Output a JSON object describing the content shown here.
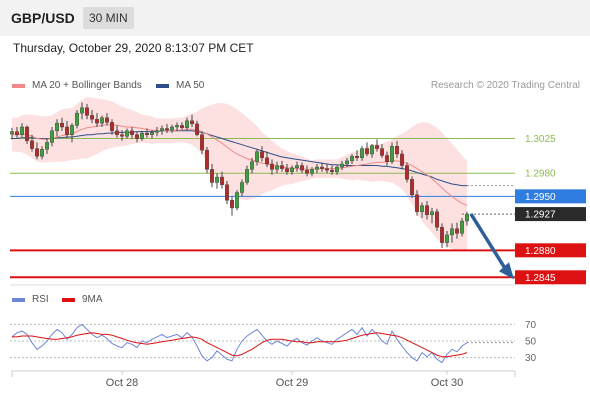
{
  "header": {
    "pair": "GBP/USD",
    "timeframe": "30 MIN"
  },
  "datetime": "Thursday, October 29, 2020 8:13:07 PM CET",
  "legend": {
    "ma20": {
      "label": "MA 20 + Bollinger Bands",
      "color": "#f08a8a"
    },
    "ma50": {
      "label": "MA 50",
      "color": "#2c4f8a"
    },
    "credit": "Research © 2020 Trading Central"
  },
  "rsi_legend": {
    "rsi": {
      "label": "RSI",
      "color": "#6f86d6"
    },
    "ma9": {
      "label": "9MA",
      "color": "#dd1111"
    }
  },
  "chart_data": {
    "type": "candlestick",
    "ylim": [
      1.2835,
      1.3075
    ],
    "levels": [
      {
        "value": 1.3025,
        "label": "1.3025",
        "kind": "resistance-minor",
        "color": "#8dbb55"
      },
      {
        "value": 1.298,
        "label": "1.2980",
        "kind": "resistance-minor",
        "color": "#8dbb55"
      },
      {
        "value": 1.295,
        "label": "1.2950",
        "kind": "pivot",
        "color": "#2f7de0"
      },
      {
        "value": 1.2927,
        "label": "1.2927",
        "kind": "last-price",
        "color": "#2a2a2a"
      },
      {
        "value": 1.288,
        "label": "1.2880",
        "kind": "support",
        "color": "#dd1111"
      },
      {
        "value": 1.2845,
        "label": "1.2845",
        "kind": "support",
        "color": "#dd1111"
      }
    ],
    "x_ticks": [
      {
        "label": "Oct 28",
        "index": 22
      },
      {
        "label": "Oct 29",
        "index": 56
      },
      {
        "label": "Oct 30",
        "index": 87
      }
    ],
    "ohlc": [
      [
        1.3031,
        1.3039,
        1.3024,
        1.3034
      ],
      [
        1.3034,
        1.304,
        1.3026,
        1.303
      ],
      [
        1.303,
        1.3045,
        1.3027,
        1.304
      ],
      [
        1.304,
        1.3042,
        1.3018,
        1.3022
      ],
      [
        1.3022,
        1.303,
        1.3008,
        1.3012
      ],
      [
        1.3012,
        1.302,
        1.2998,
        1.3002
      ],
      [
        1.3002,
        1.3015,
        1.2998,
        1.3011
      ],
      [
        1.3011,
        1.3025,
        1.3005,
        1.302
      ],
      [
        1.302,
        1.304,
        1.3015,
        1.3035
      ],
      [
        1.3035,
        1.305,
        1.3028,
        1.3045
      ],
      [
        1.3045,
        1.3052,
        1.3035,
        1.304
      ],
      [
        1.304,
        1.3048,
        1.3025,
        1.303
      ],
      [
        1.303,
        1.3045,
        1.302,
        1.3042
      ],
      [
        1.3042,
        1.3062,
        1.3038,
        1.3058
      ],
      [
        1.3058,
        1.3072,
        1.305,
        1.3065
      ],
      [
        1.3065,
        1.307,
        1.305,
        1.3055
      ],
      [
        1.3055,
        1.3062,
        1.3045,
        1.305
      ],
      [
        1.305,
        1.3058,
        1.304,
        1.3045
      ],
      [
        1.3045,
        1.3055,
        1.304,
        1.3052
      ],
      [
        1.3052,
        1.3058,
        1.3042,
        1.3046
      ],
      [
        1.3046,
        1.305,
        1.303,
        1.3035
      ],
      [
        1.3035,
        1.3042,
        1.3026,
        1.303
      ],
      [
        1.303,
        1.3036,
        1.3022,
        1.3028
      ],
      [
        1.3028,
        1.3038,
        1.3025,
        1.3035
      ],
      [
        1.3035,
        1.304,
        1.3025,
        1.303
      ],
      [
        1.303,
        1.3034,
        1.302,
        1.3025
      ],
      [
        1.3025,
        1.3035,
        1.3022,
        1.3032
      ],
      [
        1.3032,
        1.3038,
        1.3026,
        1.303
      ],
      [
        1.303,
        1.3036,
        1.3025,
        1.3033
      ],
      [
        1.3033,
        1.304,
        1.3028,
        1.3035
      ],
      [
        1.3035,
        1.3042,
        1.303,
        1.3038
      ],
      [
        1.3038,
        1.3044,
        1.3032,
        1.3036
      ],
      [
        1.3036,
        1.3043,
        1.3032,
        1.304
      ],
      [
        1.304,
        1.3046,
        1.3035,
        1.3042
      ],
      [
        1.3042,
        1.3046,
        1.3036,
        1.3039
      ],
      [
        1.3039,
        1.3052,
        1.3036,
        1.3048
      ],
      [
        1.3048,
        1.3056,
        1.304,
        1.3044
      ],
      [
        1.3044,
        1.3048,
        1.3028,
        1.303
      ],
      [
        1.303,
        1.3034,
        1.3005,
        1.301
      ],
      [
        1.301,
        1.3014,
        1.298,
        1.2985
      ],
      [
        1.2985,
        1.2992,
        1.2962,
        1.2968
      ],
      [
        1.2968,
        1.298,
        1.296,
        1.2975
      ],
      [
        1.2975,
        1.2982,
        1.296,
        1.2965
      ],
      [
        1.2965,
        1.297,
        1.294,
        1.2945
      ],
      [
        1.2945,
        1.295,
        1.2925,
        1.2935
      ],
      [
        1.2935,
        1.2958,
        1.2932,
        1.2955
      ],
      [
        1.2955,
        1.2972,
        1.295,
        1.2968
      ],
      [
        1.2968,
        1.299,
        1.2965,
        1.2985
      ],
      [
        1.2985,
        1.3,
        1.298,
        1.2995
      ],
      [
        1.2995,
        1.3012,
        1.299,
        1.3008
      ],
      [
        1.3008,
        1.3015,
        1.2995,
        1.3
      ],
      [
        1.3,
        1.3008,
        1.2988,
        1.2992
      ],
      [
        1.2992,
        1.2998,
        1.2978,
        1.2985
      ],
      [
        1.2985,
        1.2995,
        1.298,
        1.299
      ],
      [
        1.299,
        1.2996,
        1.2982,
        1.2986
      ],
      [
        1.2986,
        1.2992,
        1.2978,
        1.2982
      ],
      [
        1.2982,
        1.299,
        1.2978,
        1.2987
      ],
      [
        1.2987,
        1.2995,
        1.2982,
        1.299
      ],
      [
        1.299,
        1.2994,
        1.298,
        1.2984
      ],
      [
        1.2984,
        1.299,
        1.2976,
        1.298
      ],
      [
        1.298,
        1.2988,
        1.2976,
        1.2985
      ],
      [
        1.2985,
        1.2992,
        1.298,
        1.2988
      ],
      [
        1.2988,
        1.2994,
        1.2982,
        1.2986
      ],
      [
        1.2986,
        1.2992,
        1.298,
        1.2984
      ],
      [
        1.2984,
        1.299,
        1.2978,
        1.2982
      ],
      [
        1.2982,
        1.299,
        1.2978,
        1.2988
      ],
      [
        1.2988,
        1.2996,
        1.2984,
        1.2992
      ],
      [
        1.2992,
        1.3,
        1.2988,
        1.2996
      ],
      [
        1.2996,
        1.3005,
        1.2992,
        1.3002
      ],
      [
        1.3002,
        1.301,
        1.2996,
        1.3
      ],
      [
        1.3,
        1.3015,
        1.2996,
        1.3012
      ],
      [
        1.3012,
        1.302,
        1.3002,
        1.3005
      ],
      [
        1.3005,
        1.3018,
        1.3,
        1.3016
      ],
      [
        1.3016,
        1.3024,
        1.3008,
        1.3012
      ],
      [
        1.3012,
        1.3018,
        1.3,
        1.3003
      ],
      [
        1.3003,
        1.3008,
        1.299,
        1.2995
      ],
      [
        1.2995,
        1.302,
        1.2992,
        1.3015
      ],
      [
        1.3015,
        1.3022,
        1.3,
        1.3005
      ],
      [
        1.3005,
        1.301,
        1.2985,
        1.299
      ],
      [
        1.299,
        1.2994,
        1.2968,
        1.2972
      ],
      [
        1.2972,
        1.2976,
        1.2948,
        1.2952
      ],
      [
        1.2952,
        1.2958,
        1.2925,
        1.293
      ],
      [
        1.293,
        1.2942,
        1.2922,
        1.2938
      ],
      [
        1.2938,
        1.2944,
        1.292,
        1.2926
      ],
      [
        1.2926,
        1.2935,
        1.2915,
        1.293
      ],
      [
        1.293,
        1.2934,
        1.2905,
        1.291
      ],
      [
        1.291,
        1.2915,
        1.2883,
        1.289
      ],
      [
        1.289,
        1.2905,
        1.2884,
        1.29
      ],
      [
        1.29,
        1.2915,
        1.289,
        1.2908
      ],
      [
        1.2908,
        1.2916,
        1.2895,
        1.2902
      ],
      [
        1.2902,
        1.2922,
        1.2898,
        1.2918
      ],
      [
        1.2918,
        1.293,
        1.2912,
        1.2927
      ]
    ],
    "ma20": [
      1.303,
      1.303,
      1.3031,
      1.303,
      1.3028,
      1.3025,
      1.3024,
      1.3024,
      1.3025,
      1.3027,
      1.3029,
      1.303,
      1.3031,
      1.3034,
      1.3037,
      1.3039,
      1.304,
      1.3041,
      1.3042,
      1.3043,
      1.3043,
      1.3042,
      1.3041,
      1.304,
      1.304,
      1.3039,
      1.3038,
      1.3037,
      1.3036,
      1.3035,
      1.3035,
      1.3035,
      1.3035,
      1.3036,
      1.3036,
      1.3037,
      1.3037,
      1.3036,
      1.3034,
      1.3031,
      1.3027,
      1.3023,
      1.3019,
      1.3014,
      1.3009,
      1.3005,
      1.3002,
      1.2999,
      1.2997,
      1.2995,
      1.2993,
      1.2992,
      1.299,
      1.2989,
      1.2988,
      1.2987,
      1.2986,
      1.2986,
      1.2986,
      1.2985,
      1.2985,
      1.2986,
      1.2986,
      1.2986,
      1.2986,
      1.2986,
      1.2987,
      1.2988,
      1.2989,
      1.299,
      1.2991,
      1.2992,
      1.2993,
      1.2994,
      1.2994,
      1.2995,
      1.2996,
      1.2996,
      1.2995,
      1.2993,
      1.299,
      1.2986,
      1.2982,
      1.2978,
      1.2973,
      1.2967,
      1.2961,
      1.2955,
      1.295,
      1.2945,
      1.2941,
      1.2938
    ],
    "ma50": [
      1.3025,
      1.3025,
      1.3026,
      1.3026,
      1.3026,
      1.3025,
      1.3025,
      1.3025,
      1.3025,
      1.3026,
      1.3026,
      1.3027,
      1.3027,
      1.3028,
      1.3029,
      1.303,
      1.303,
      1.3031,
      1.3031,
      1.3032,
      1.3032,
      1.3033,
      1.3033,
      1.3033,
      1.3033,
      1.3034,
      1.3034,
      1.3034,
      1.3034,
      1.3034,
      1.3035,
      1.3035,
      1.3035,
      1.3035,
      1.3035,
      1.3035,
      1.3035,
      1.3034,
      1.3033,
      1.3031,
      1.3029,
      1.3027,
      1.3025,
      1.3023,
      1.3021,
      1.3019,
      1.3017,
      1.3015,
      1.3013,
      1.3011,
      1.3009,
      1.3007,
      1.3005,
      1.3003,
      1.3001,
      1.3,
      1.2999,
      1.2998,
      1.2997,
      1.2996,
      1.2995,
      1.2994,
      1.2993,
      1.2992,
      1.2991,
      1.2991,
      1.299,
      1.299,
      1.299,
      1.299,
      1.299,
      1.299,
      1.299,
      1.299,
      1.2989,
      1.2989,
      1.2988,
      1.2987,
      1.2986,
      1.2985,
      1.2983,
      1.2981,
      1.2979,
      1.2977,
      1.2975,
      1.2972,
      1.297,
      1.2968,
      1.2966,
      1.2965,
      1.2964,
      1.2964
    ],
    "band_width": [
      0.0022,
      0.0022,
      0.0024,
      0.0026,
      0.0028,
      0.003,
      0.003,
      0.003,
      0.003,
      0.0032,
      0.0034,
      0.0034,
      0.0034,
      0.0036,
      0.0038,
      0.004,
      0.0038,
      0.0036,
      0.0034,
      0.0032,
      0.003,
      0.0028,
      0.0026,
      0.0024,
      0.0022,
      0.002,
      0.0018,
      0.0018,
      0.0018,
      0.0016,
      0.0016,
      0.0016,
      0.0016,
      0.0016,
      0.0016,
      0.0018,
      0.002,
      0.0024,
      0.003,
      0.0036,
      0.0042,
      0.0048,
      0.0052,
      0.0056,
      0.0058,
      0.0058,
      0.0056,
      0.0054,
      0.005,
      0.0046,
      0.004,
      0.0036,
      0.0032,
      0.0028,
      0.0024,
      0.0022,
      0.002,
      0.0018,
      0.0016,
      0.0014,
      0.0012,
      0.0012,
      0.0012,
      0.0012,
      0.0012,
      0.0012,
      0.0014,
      0.0016,
      0.0018,
      0.0018,
      0.002,
      0.0022,
      0.0024,
      0.0024,
      0.0024,
      0.0026,
      0.0028,
      0.0032,
      0.0036,
      0.0042,
      0.005,
      0.0058,
      0.0064,
      0.0068,
      0.007,
      0.0072,
      0.0072,
      0.007,
      0.0068,
      0.0066,
      0.0062,
      0.0058
    ],
    "projection": {
      "from_index": 91,
      "from_value": 1.2927,
      "to_value": 1.2845
    },
    "rsi": {
      "levels": [
        70,
        50,
        30
      ],
      "ylim": [
        15,
        85
      ],
      "rsi": [
        55,
        60,
        62,
        58,
        48,
        40,
        44,
        50,
        58,
        64,
        60,
        52,
        58,
        66,
        70,
        64,
        58,
        54,
        57,
        53,
        47,
        44,
        42,
        48,
        46,
        42,
        50,
        48,
        52,
        55,
        58,
        54,
        56,
        58,
        54,
        60,
        55,
        44,
        32,
        26,
        30,
        38,
        33,
        28,
        26,
        40,
        50,
        56,
        60,
        64,
        57,
        50,
        46,
        50,
        47,
        44,
        50,
        53,
        48,
        45,
        50,
        54,
        50,
        48,
        46,
        52,
        56,
        60,
        64,
        58,
        66,
        56,
        64,
        58,
        50,
        46,
        62,
        52,
        44,
        36,
        30,
        26,
        36,
        31,
        36,
        28,
        24,
        34,
        40,
        37,
        44,
        48
      ],
      "ma9": [
        55,
        55,
        56,
        56,
        56,
        55,
        54,
        53,
        52,
        52,
        53,
        54,
        55,
        57,
        58,
        59,
        60,
        59,
        58,
        58,
        57,
        55,
        53,
        51,
        49,
        48,
        47,
        46,
        47,
        48,
        49,
        50,
        51,
        52,
        53,
        54,
        55,
        54,
        52,
        48,
        45,
        42,
        39,
        36,
        33,
        32,
        34,
        37,
        40,
        44,
        48,
        51,
        52,
        52,
        52,
        51,
        50,
        49,
        49,
        48,
        48,
        49,
        49,
        49,
        49,
        49,
        50,
        51,
        53,
        55,
        57,
        58,
        59,
        60,
        59,
        58,
        57,
        56,
        54,
        51,
        48,
        45,
        42,
        39,
        36,
        33,
        31,
        31,
        32,
        33,
        34,
        36
      ]
    }
  }
}
